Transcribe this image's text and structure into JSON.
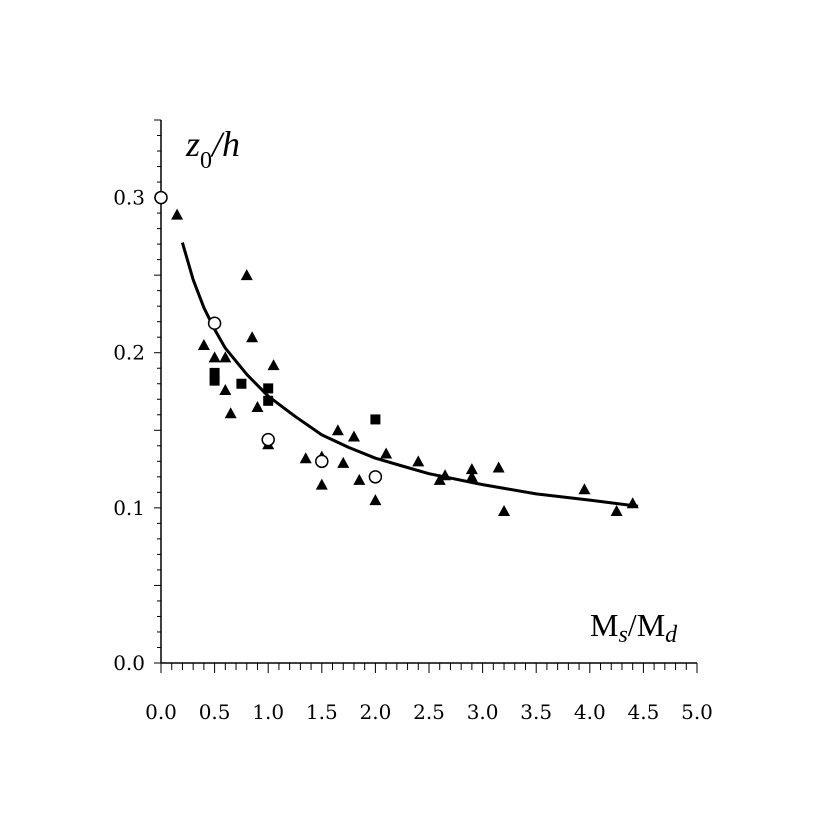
{
  "chart_data": {
    "type": "scatter",
    "xlabel": {
      "base": "M",
      "sub1": "s",
      "mid": "/M",
      "sub2": "d"
    },
    "ylabel": {
      "base": "z",
      "sub": "0",
      "rest": "/h"
    },
    "xlim": [
      0,
      5
    ],
    "ylim": [
      0,
      0.35
    ],
    "x_ticks": [
      "0.0",
      "0.5",
      "1.0",
      "1.5",
      "2.0",
      "2.5",
      "3.0",
      "3.5",
      "4.0",
      "4.5",
      "5.0"
    ],
    "x_tick_values": [
      0,
      0.5,
      1.0,
      1.5,
      2.0,
      2.5,
      3.0,
      3.5,
      4.0,
      4.5,
      5.0
    ],
    "y_ticks": [
      "0.0",
      "0.1",
      "0.2",
      "0.3"
    ],
    "y_tick_values": [
      0,
      0.1,
      0.2,
      0.3
    ],
    "grid": false,
    "series": [
      {
        "marker": "triangle",
        "points": [
          [
            0.15,
            0.289
          ],
          [
            0.4,
            0.205
          ],
          [
            0.5,
            0.197
          ],
          [
            0.6,
            0.197
          ],
          [
            0.6,
            0.176
          ],
          [
            0.65,
            0.161
          ],
          [
            0.8,
            0.25
          ],
          [
            0.85,
            0.21
          ],
          [
            0.9,
            0.165
          ],
          [
            1.0,
            0.141
          ],
          [
            1.05,
            0.192
          ],
          [
            1.35,
            0.132
          ],
          [
            1.5,
            0.133
          ],
          [
            1.5,
            0.115
          ],
          [
            1.65,
            0.15
          ],
          [
            1.7,
            0.129
          ],
          [
            1.8,
            0.146
          ],
          [
            1.85,
            0.118
          ],
          [
            2.0,
            0.105
          ],
          [
            2.1,
            0.135
          ],
          [
            2.4,
            0.13
          ],
          [
            2.6,
            0.118
          ],
          [
            2.65,
            0.121
          ],
          [
            2.9,
            0.125
          ],
          [
            2.9,
            0.12
          ],
          [
            3.15,
            0.126
          ],
          [
            3.2,
            0.098
          ],
          [
            3.95,
            0.112
          ],
          [
            4.25,
            0.098
          ],
          [
            4.4,
            0.103
          ]
        ]
      },
      {
        "marker": "square",
        "points": [
          [
            0.5,
            0.187
          ],
          [
            0.5,
            0.182
          ],
          [
            0.75,
            0.18
          ],
          [
            1.0,
            0.177
          ],
          [
            1.0,
            0.169
          ],
          [
            2.0,
            0.157
          ]
        ]
      },
      {
        "marker": "circle",
        "points": [
          [
            0.0,
            0.3
          ],
          [
            0.5,
            0.219
          ],
          [
            1.0,
            0.144
          ],
          [
            1.5,
            0.13
          ],
          [
            2.0,
            0.12
          ]
        ]
      }
    ],
    "fit_curve": {
      "x": [
        0.2,
        0.3,
        0.4,
        0.5,
        0.6,
        0.8,
        1.0,
        1.25,
        1.5,
        1.75,
        2.0,
        2.25,
        2.5,
        3.0,
        3.5,
        4.0,
        4.45
      ],
      "y": [
        0.271,
        0.247,
        0.229,
        0.215,
        0.203,
        0.186,
        0.172,
        0.159,
        0.147,
        0.139,
        0.132,
        0.127,
        0.122,
        0.115,
        0.109,
        0.105,
        0.101
      ]
    }
  }
}
